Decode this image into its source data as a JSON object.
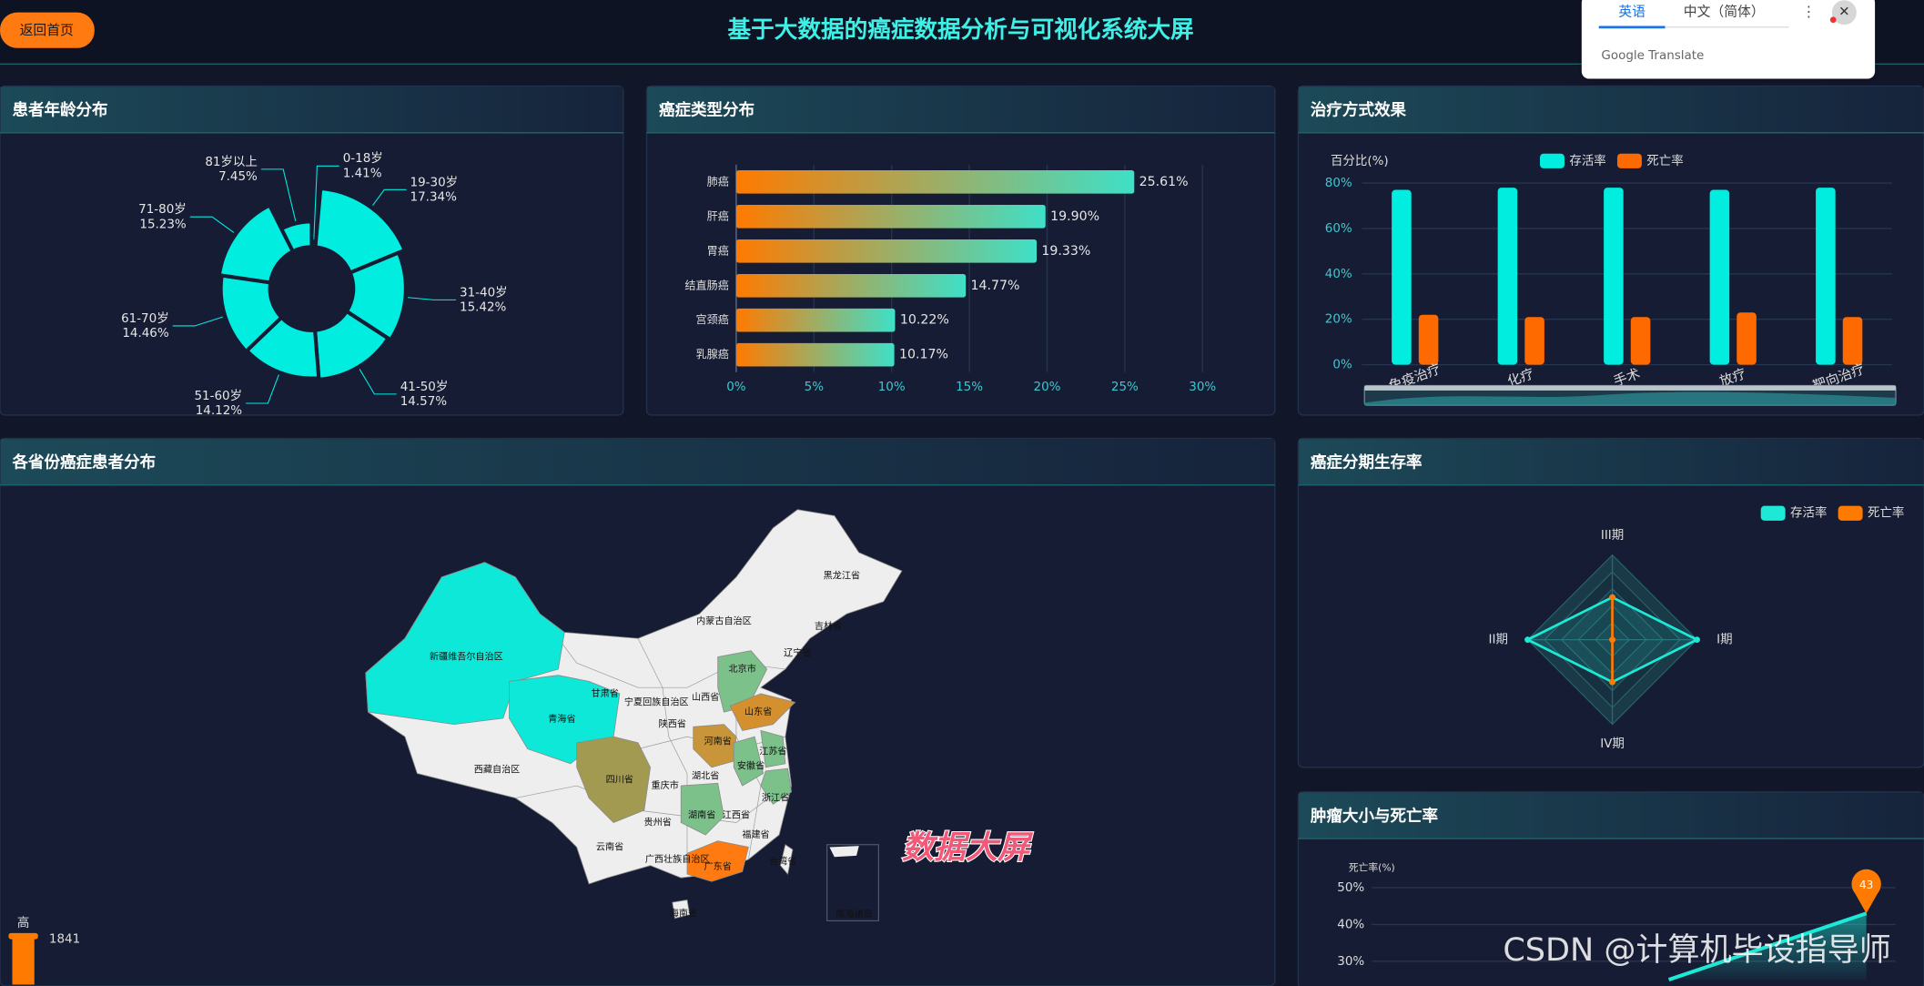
{
  "header": {
    "back_button": "返回首页",
    "title": "基于大数据的癌症数据分析与可视化系统大屏"
  },
  "translate_popup": {
    "tabs": [
      "英语",
      "中文（简体）"
    ],
    "brand": "Google Translate"
  },
  "chart_data": [
    {
      "type": "rose",
      "title": "患者年龄分布",
      "categories": [
        "0-18岁",
        "19-30岁",
        "31-40岁",
        "41-50岁",
        "51-60岁",
        "61-70岁",
        "71-80岁",
        "81岁以上"
      ],
      "values": [
        1.41,
        17.34,
        15.42,
        14.57,
        14.12,
        14.46,
        15.23,
        7.45
      ],
      "value_labels": [
        "1.41%",
        "17.34%",
        "15.42%",
        "14.57%",
        "14.12%",
        "14.46%",
        "15.23%",
        "7.45%"
      ],
      "color": "#00ede0"
    },
    {
      "type": "hbar",
      "title": "癌症类型分布",
      "categories": [
        "肺癌",
        "肝癌",
        "胃癌",
        "结直肠癌",
        "宫颈癌",
        "乳腺癌"
      ],
      "values": [
        25.61,
        19.9,
        19.33,
        14.77,
        10.22,
        10.17
      ],
      "value_labels": [
        "25.61%",
        "19.90%",
        "19.33%",
        "14.77%",
        "10.22%",
        "10.17%"
      ],
      "colors": [
        "#ff7a00",
        "#3ee0c8"
      ],
      "xlim": [
        0,
        30
      ],
      "xticks": [
        {
          "value": 0,
          "label": "0%"
        },
        {
          "value": 5,
          "label": "5%"
        },
        {
          "value": 10,
          "label": "10%"
        },
        {
          "value": 15,
          "label": "15%"
        },
        {
          "value": 20,
          "label": "20%"
        },
        {
          "value": 25,
          "label": "25%"
        },
        {
          "value": 30,
          "label": "30%"
        }
      ],
      "grid": true
    },
    {
      "type": "bar",
      "title": "治疗方式效果",
      "y_label": "百分比(%)",
      "categories": [
        "免疫治疗",
        "化疗",
        "手术",
        "放疗",
        "靶向治疗"
      ],
      "series": [
        {
          "name": "存活率",
          "color": "#00ede0",
          "values": [
            77,
            78,
            78,
            77,
            78
          ]
        },
        {
          "name": "死亡率",
          "color": "#ff6a00",
          "values": [
            22,
            21,
            21,
            23,
            21
          ]
        }
      ],
      "ylim": [
        0,
        80
      ],
      "yticks": [
        {
          "value": 0,
          "label": "0%"
        },
        {
          "value": 20,
          "label": "20%"
        },
        {
          "value": 40,
          "label": "40%"
        },
        {
          "value": 60,
          "label": "60%"
        },
        {
          "value": 80,
          "label": "80%"
        }
      ],
      "grid": true,
      "legend": "top"
    },
    {
      "type": "radar",
      "title": "癌症分期生存率",
      "indicators": [
        "III期",
        "II期",
        "IV期",
        "I期"
      ],
      "rlim": [
        0,
        100
      ],
      "series": [
        {
          "name": "存活率",
          "color": "#1de9d6",
          "values": [
            50,
            100,
            50,
            100
          ]
        },
        {
          "name": "死亡率",
          "color": "#ff7a00",
          "values": [
            50,
            0,
            50,
            0
          ]
        }
      ],
      "legend": "top-right"
    },
    {
      "type": "map",
      "title": "各省份癌症患者分布",
      "default_color": "#eeeeee",
      "regions": [
        {
          "name": "黑龙江省"
        },
        {
          "name": "吉林省"
        },
        {
          "name": "辽宁省"
        },
        {
          "name": "内蒙古自治区"
        },
        {
          "name": "新疆维吾尔自治区",
          "color": "#0ee8d8"
        },
        {
          "name": "甘肃省"
        },
        {
          "name": "宁夏回族自治区"
        },
        {
          "name": "青海省",
          "color": "#0ee8d8"
        },
        {
          "name": "西藏自治区"
        },
        {
          "name": "四川省",
          "color": "#a39a52"
        },
        {
          "name": "陕西省"
        },
        {
          "name": "山西省"
        },
        {
          "name": "北京市",
          "color": "#7cc08a"
        },
        {
          "name": "山东省",
          "color": "#d4902e"
        },
        {
          "name": "河南省",
          "color": "#c9953a"
        },
        {
          "name": "湖北省"
        },
        {
          "name": "安徽省",
          "color": "#7cc08a"
        },
        {
          "name": "江苏省",
          "color": "#7cc08a"
        },
        {
          "name": "重庆市"
        },
        {
          "name": "贵州省"
        },
        {
          "name": "湖南省",
          "color": "#7cc08a"
        },
        {
          "name": "江西省"
        },
        {
          "name": "浙江省",
          "color": "#7cc08a"
        },
        {
          "name": "福建省"
        },
        {
          "name": "云南省"
        },
        {
          "name": "广西壮族自治区"
        },
        {
          "name": "广东省",
          "color": "#ff7a10"
        },
        {
          "name": "台湾省"
        },
        {
          "name": "海南省"
        },
        {
          "name": "南海诸岛"
        }
      ],
      "visual_map": {
        "max": 1841,
        "high_label": "高",
        "color": "#ff7a00"
      }
    },
    {
      "type": "line",
      "title": "肿瘤大小与死亡率",
      "y_label": "死亡率(%)",
      "categories": [
        null,
        null
      ],
      "values": [
        25,
        43
      ],
      "color": "#1de9d6",
      "mark_color": "#ff7a00",
      "ylim": [
        25,
        50
      ],
      "yticks": [
        {
          "value": 30,
          "label": "30%"
        },
        {
          "value": 40,
          "label": "40%"
        },
        {
          "value": 50,
          "label": "50%"
        }
      ],
      "grid": true
    }
  ],
  "watermarks": [
    "数据大屏",
    "CSDN @计算机毕设指导师"
  ]
}
